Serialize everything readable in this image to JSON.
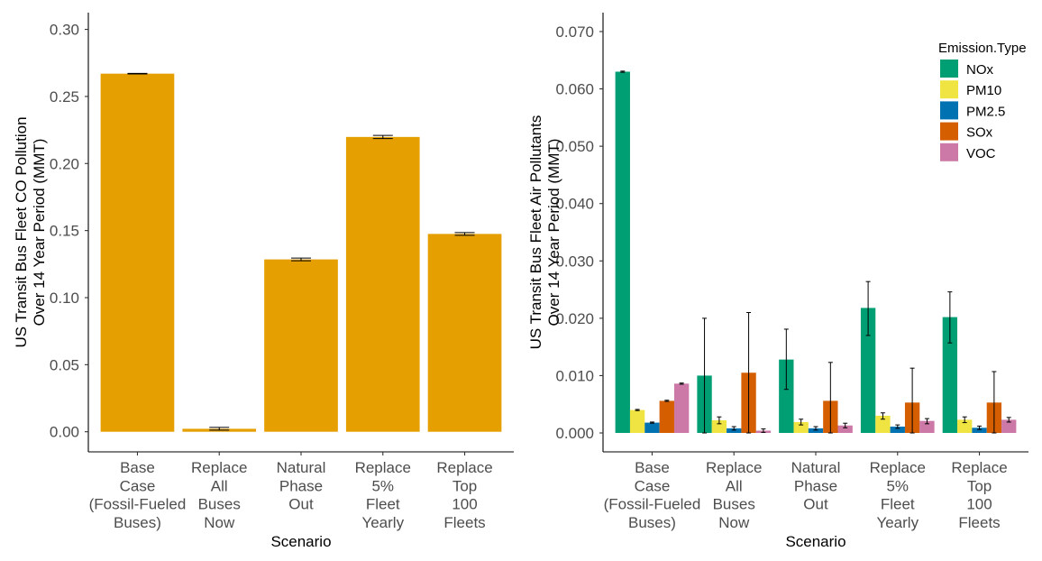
{
  "chart_data": [
    {
      "type": "bar",
      "title": "",
      "xlabel": "Scenario",
      "ylabel": [
        "US Transit Bus Fleet CO Pollution",
        "Over 14 Year Period (MMT)"
      ],
      "ylim": [
        -0.015,
        0.3125
      ],
      "yticks": [
        0.0,
        0.05,
        0.1,
        0.15,
        0.2,
        0.25,
        0.3
      ],
      "ytick_labels": [
        "0.00",
        "0.05",
        "0.10",
        "0.15",
        "0.20",
        "0.25",
        "0.30"
      ],
      "categories": [
        [
          "Base",
          "Case",
          "(Fossil-Fueled",
          "Buses)"
        ],
        [
          "Replace",
          "All",
          "Buses",
          "Now"
        ],
        [
          "Natural",
          "Phase",
          "Out"
        ],
        [
          "Replace",
          "5%",
          "Fleet",
          "Yearly"
        ],
        [
          "Replace",
          "Top",
          "100",
          "Fleets"
        ]
      ],
      "color": "#E69F00",
      "values": [
        0.267,
        0.0022,
        0.1285,
        0.2198,
        0.1475
      ],
      "errors": [
        [
          0.2668,
          0.2672
        ],
        [
          0.0012,
          0.0032
        ],
        [
          0.1275,
          0.1295
        ],
        [
          0.2186,
          0.221
        ],
        [
          0.1465,
          0.1485
        ]
      ],
      "grid": false
    },
    {
      "type": "bar",
      "title": "",
      "xlabel": "Scenario",
      "ylabel": [
        "US Transit Bus Fleet Air Pollutants",
        "Over 14 Year Period (MMT)"
      ],
      "ylim": [
        -0.0033,
        0.0733
      ],
      "yticks": [
        0.0,
        0.01,
        0.02,
        0.03,
        0.04,
        0.05,
        0.06,
        0.07
      ],
      "ytick_labels": [
        "0.000",
        "0.010",
        "0.020",
        "0.030",
        "0.040",
        "0.050",
        "0.060",
        "0.070"
      ],
      "categories": [
        [
          "Base",
          "Case",
          "(Fossil-Fueled",
          "Buses)"
        ],
        [
          "Replace",
          "All",
          "Buses",
          "Now"
        ],
        [
          "Natural",
          "Phase",
          "Out"
        ],
        [
          "Replace",
          "5%",
          "Fleet",
          "Yearly"
        ],
        [
          "Replace",
          "Top",
          "100",
          "Fleets"
        ]
      ],
      "legend_title": "Emission.Type",
      "legend_position": "top-right",
      "series": [
        {
          "name": "NOx",
          "color": "#009E73",
          "values": [
            0.063,
            0.01,
            0.0128,
            0.0218,
            0.0202
          ],
          "errors": [
            [
              0.0629,
              0.0631
            ],
            [
              0.0,
              0.02
            ],
            [
              0.0076,
              0.0181
            ],
            [
              0.017,
              0.0264
            ],
            [
              0.0157,
              0.0246
            ]
          ]
        },
        {
          "name": "PM10",
          "color": "#F0E442",
          "values": [
            0.004,
            0.0022,
            0.0019,
            0.003,
            0.0023
          ],
          "errors": [
            [
              0.0039,
              0.0041
            ],
            [
              0.0016,
              0.0028
            ],
            [
              0.0014,
              0.0024
            ],
            [
              0.0024,
              0.0035
            ],
            [
              0.0018,
              0.0028
            ]
          ]
        },
        {
          "name": "PM2.5",
          "color": "#0072B2",
          "values": [
            0.0018,
            0.0008,
            0.0008,
            0.0011,
            0.0009
          ],
          "errors": [
            [
              0.0017,
              0.0019
            ],
            [
              0.0005,
              0.0011
            ],
            [
              0.0005,
              0.0011
            ],
            [
              0.0008,
              0.0014
            ],
            [
              0.0006,
              0.0012
            ]
          ]
        },
        {
          "name": "SOx",
          "color": "#D55E00",
          "values": [
            0.0056,
            0.0105,
            0.0056,
            0.0053,
            0.0053
          ],
          "errors": [
            [
              0.0055,
              0.0057
            ],
            [
              0.0,
              0.021
            ],
            [
              0.0,
              0.0123
            ],
            [
              0.0,
              0.0113
            ],
            [
              0.0,
              0.0107
            ]
          ]
        },
        {
          "name": "VOC",
          "color": "#CC79A7",
          "values": [
            0.0086,
            0.0004,
            0.0013,
            0.0021,
            0.0023
          ],
          "errors": [
            [
              0.0085,
              0.0087
            ],
            [
              0.0001,
              0.0007
            ],
            [
              0.0009,
              0.0017
            ],
            [
              0.0016,
              0.0025
            ],
            [
              0.0019,
              0.0027
            ]
          ]
        }
      ],
      "grid": false
    }
  ]
}
